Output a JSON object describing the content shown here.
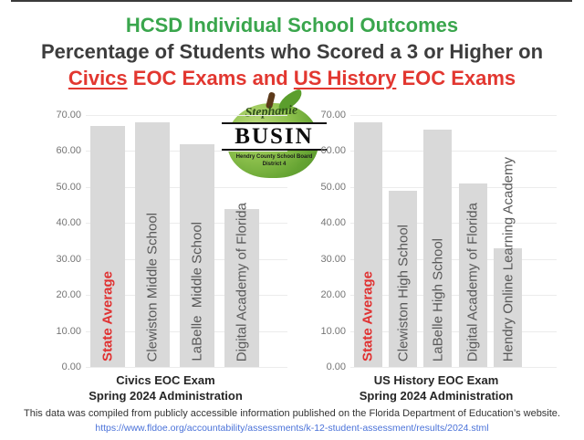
{
  "colors": {
    "title_green": "#3aa64d",
    "title_dark": "#3d3d3d",
    "title_red": "#e23730",
    "bar_fill": "#d9d9d9",
    "bar_label_gray": "#595959",
    "highlight_red": "#e03131",
    "tick_gray": "#757575",
    "grid_gray": "#ececec",
    "link_blue": "#4a72d9"
  },
  "header": {
    "line1": "HCSD Individual School Outcomes",
    "line2": "Percentage of Students who Scored a 3 or Higher on",
    "line3": {
      "seg1": "Civics",
      "seg2": " EOC Exams and ",
      "seg3": "US History",
      "seg4": " EOC Exams"
    }
  },
  "logo": {
    "script_name": "Stephanie",
    "caps_name": "BUSIN",
    "org": "Hendry County School Board",
    "district": "District 4"
  },
  "chart_data": [
    {
      "type": "bar",
      "title": "Civics EOC Exam",
      "subtitle": "Spring 2024 Administration",
      "categories": [
        "State Average",
        "Clewiston Middle School",
        "LaBelle  Middle School",
        "Digital Academy of Florida"
      ],
      "values": [
        67,
        68,
        62,
        44
      ],
      "highlight_index": 0,
      "ylim": [
        0,
        70
      ],
      "ytick_step": 10,
      "ytick_decimals": 2,
      "grid": true,
      "legend": false,
      "bar_color": "#d9d9d9",
      "label_color": "#595959",
      "highlight_color": "#e03131",
      "grid_color": "#ececec",
      "xlabel": "",
      "ylabel": ""
    },
    {
      "type": "bar",
      "title": "US History EOC Exam",
      "subtitle": "Spring 2024 Administration",
      "categories": [
        "State Average",
        "Clewiston High School",
        "LaBelle High School",
        "Digital Academy of Florida",
        "Hendry Online Learning Academy"
      ],
      "values": [
        68,
        49,
        66,
        51,
        33
      ],
      "highlight_index": 0,
      "ylim": [
        0,
        70
      ],
      "ytick_step": 10,
      "ytick_decimals": 2,
      "grid": true,
      "legend": false,
      "bar_color": "#d9d9d9",
      "label_color": "#595959",
      "highlight_color": "#e03131",
      "grid_color": "#ececec",
      "xlabel": "",
      "ylabel": ""
    }
  ],
  "footer": {
    "text": "This data was compiled from publicly accessible information published on the Florida Department of Education’s website.",
    "link": "https://www.fldoe.org/accountability/assessments/k-12-student-assessment/results/2024.stml"
  }
}
